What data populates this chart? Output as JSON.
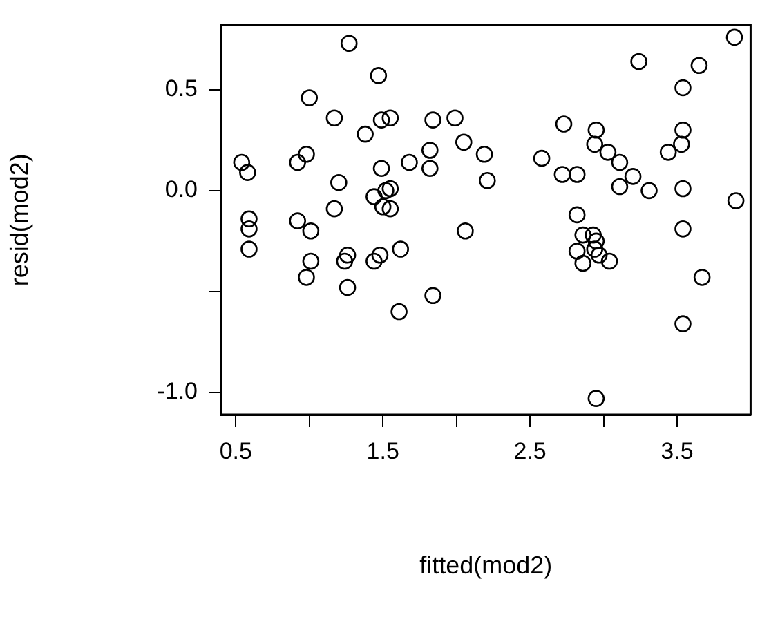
{
  "chart_data": {
    "type": "scatter",
    "xlabel": "fitted(mod2)",
    "ylabel": "resid(mod2)",
    "marker": "circle",
    "grid": false,
    "legend": false,
    "xlim": [
      0.4,
      4.0
    ],
    "ylim": [
      -1.11,
      0.82
    ],
    "xticks": [
      0.5,
      {
        "value": 1,
        "label": null
      },
      1.5,
      {
        "value": 2,
        "label": null
      },
      2.5,
      {
        "value": 3,
        "label": null
      },
      3.5
    ],
    "yticks": [
      {
        "value": -1,
        "label": "-1.0"
      },
      {
        "value": -0.5,
        "label": null
      },
      {
        "value": 0,
        "label": "0.0"
      },
      0.5
    ],
    "series": [
      {
        "color": "#000000",
        "x": [
          1.27,
          1.47,
          1.0,
          1.17,
          1.49,
          1.55,
          1.38,
          1.84,
          1.99,
          2.05,
          1.82,
          1.82,
          1.68,
          0.54,
          0.58,
          0.92,
          0.98,
          1.2,
          1.49,
          1.55,
          1.44,
          1.52,
          1.5,
          1.55,
          1.17,
          0.92,
          1.01,
          0.59,
          0.59,
          0.59,
          1.62,
          1.26,
          1.24,
          1.48,
          1.44,
          1.01,
          0.98,
          1.26,
          1.84,
          1.61,
          2.06,
          3.89,
          3.24,
          3.65,
          3.54,
          2.73,
          2.19,
          2.21,
          2.58,
          2.72,
          2.82,
          2.95,
          2.94,
          3.03,
          3.11,
          3.2,
          3.11,
          3.31,
          3.54,
          3.53,
          3.44,
          3.54,
          3.9,
          3.54,
          3.67,
          3.54,
          2.95,
          2.82,
          2.86,
          2.93,
          2.95,
          2.82,
          2.86,
          2.97,
          3.04,
          2.94
        ],
        "values": [
          0.73,
          0.57,
          0.46,
          0.36,
          0.35,
          0.36,
          0.28,
          0.35,
          0.36,
          0.24,
          0.2,
          0.11,
          0.14,
          0.14,
          0.09,
          0.14,
          0.18,
          0.04,
          0.11,
          0.01,
          -0.03,
          0.0,
          -0.08,
          -0.09,
          -0.09,
          -0.15,
          -0.2,
          -0.14,
          -0.19,
          -0.29,
          -0.29,
          -0.32,
          -0.35,
          -0.32,
          -0.35,
          -0.35,
          -0.43,
          -0.48,
          -0.52,
          -0.6,
          -0.2,
          0.76,
          0.64,
          0.62,
          0.51,
          0.33,
          0.18,
          0.05,
          0.16,
          0.08,
          0.08,
          0.3,
          0.23,
          0.19,
          0.14,
          0.07,
          0.02,
          0.0,
          0.3,
          0.23,
          0.19,
          0.01,
          -0.05,
          -0.19,
          -0.43,
          -0.66,
          -1.03,
          -0.12,
          -0.22,
          -0.22,
          -0.25,
          -0.3,
          -0.36,
          -0.32,
          -0.35,
          -0.29
        ]
      }
    ]
  }
}
